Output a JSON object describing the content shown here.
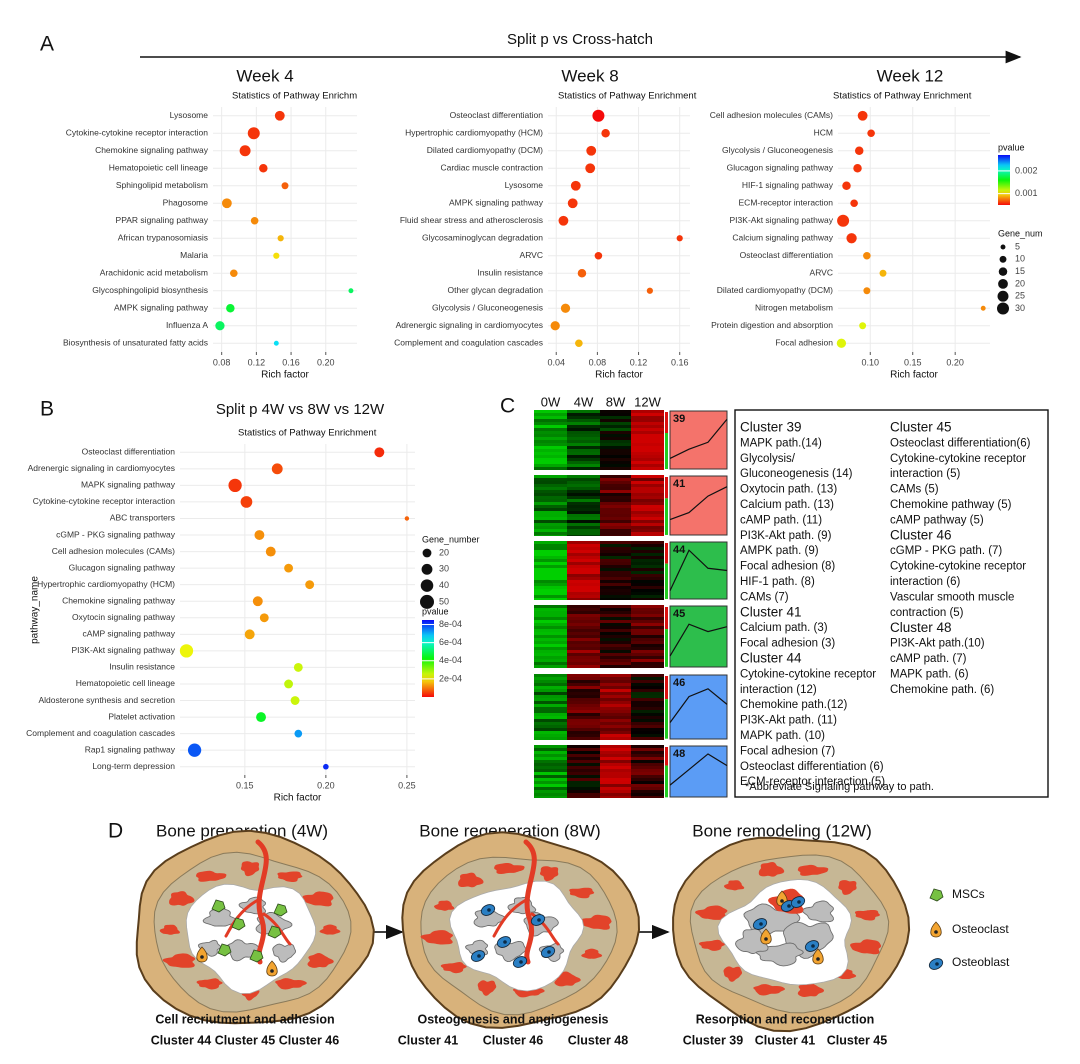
{
  "panel_labels": [
    "A",
    "B",
    "C",
    "D"
  ],
  "panel_a": {
    "title": "Split p vs Cross-hatch",
    "week_labels": [
      "Week 4",
      "Week 8",
      "Week 12"
    ]
  },
  "panel_b": {
    "title": "Split p 4W vs 8W vs 12W"
  },
  "chart_data": [
    {
      "type": "dot",
      "title": "Statistics of Pathway Enrichment",
      "xlabel": "Rich factor",
      "categories": [
        "Lysosome",
        "Cytokine-cytokine receptor interaction",
        "Chemokine signaling pathway",
        "Hematopoietic cell lineage",
        "Sphingolipid metabolism",
        "Phagosome",
        "PPAR signaling pathway",
        "African trypanosomiasis",
        "Malaria",
        "Arachidonic acid metabolism",
        "Glycosphingolipid biosynthesis",
        "AMPK signaling pathway",
        "Influenza A",
        "Biosynthesis of unsaturated fatty acids"
      ],
      "values": [
        0.147,
        0.117,
        0.107,
        0.128,
        0.153,
        0.086,
        0.118,
        0.148,
        0.143,
        0.094,
        0.229,
        0.09,
        0.078,
        0.143
      ],
      "sizes": [
        20,
        30,
        25,
        15,
        10,
        20,
        12,
        8,
        8,
        12,
        5,
        15,
        18,
        5
      ],
      "pvalues": [
        0.0006,
        0.0006,
        0.0006,
        0.0006,
        0.0007,
        0.0008,
        0.0008,
        0.0009,
        0.001,
        0.0008,
        0.0018,
        0.0017,
        0.0018,
        0.0022
      ],
      "xlim": [
        0.07,
        0.236
      ],
      "xticks": [
        0.08,
        0.12,
        0.16,
        {
          "value": 0.2,
          "label": "0.20"
        }
      ],
      "grid": true
    },
    {
      "type": "dot",
      "title": "Statistics of Pathway Enrichment",
      "xlabel": "Rich factor",
      "categories": [
        "Osteoclast differentiation",
        "Hypertrophic cardiomyopathy (HCM)",
        "Dilated cardiomyopathy (DCM)",
        "Cardiac muscle contraction",
        "Lysosome",
        "AMPK signaling pathway",
        "Fluid shear stress and atherosclerosis",
        "Glycosaminoglycan degradation",
        "ARVC",
        "Insulin resistance",
        "Other glycan degradation",
        "Glycolysis / Gluconeogenesis",
        "Adrenergic signaling in cardiomyocytes",
        "Complement and coagulation cascades"
      ],
      "values": [
        0.081,
        0.088,
        0.074,
        0.073,
        0.059,
        0.056,
        0.047,
        0.16,
        0.081,
        0.065,
        0.131,
        0.049,
        0.039,
        0.062
      ],
      "sizes": [
        30,
        15,
        20,
        20,
        20,
        20,
        20,
        8,
        12,
        15,
        8,
        18,
        18,
        12
      ],
      "pvalues": [
        0.0005,
        0.0006,
        0.0006,
        0.0006,
        0.0006,
        0.0006,
        0.0006,
        0.0006,
        0.0006,
        0.0007,
        0.0007,
        0.0008,
        0.0008,
        0.0009
      ],
      "xlim": [
        0.032,
        0.17
      ],
      "xticks": [
        0.04,
        0.08,
        0.12,
        0.16
      ],
      "grid": true
    },
    {
      "type": "dot",
      "title": "Statistics of Pathway Enrichment",
      "xlabel": "Rich factor",
      "categories": [
        "Cell adhesion molecules (CAMs)",
        "HCM",
        "Glycolysis / Gluconeogenesis",
        "Glucagon signaling pathway",
        "HIF-1 signaling pathway",
        "ECM-receptor interaction",
        "PI3K-Akt signaling pathway",
        "Calcium signaling pathway",
        "Osteoclast differentiation",
        "ARVC",
        "Dilated cardiomyopathy (DCM)",
        "Nitrogen metabolism",
        "Protein digestion and absorption",
        "Focal adhesion"
      ],
      "values": [
        0.091,
        0.101,
        0.087,
        0.085,
        0.072,
        0.081,
        0.068,
        0.078,
        0.096,
        0.115,
        0.096,
        0.233,
        0.091,
        0.066
      ],
      "sizes": [
        20,
        12,
        15,
        15,
        15,
        12,
        30,
        22,
        12,
        10,
        10,
        5,
        10,
        18
      ],
      "pvalues": [
        0.0006,
        0.0006,
        0.0006,
        0.0006,
        0.0006,
        0.0006,
        0.0006,
        0.0006,
        0.0008,
        0.0009,
        0.0008,
        0.0008,
        0.0011,
        0.0011
      ],
      "xlim": [
        0.062,
        0.241
      ],
      "xticks": [
        {
          "value": 0.1,
          "label": "0.10"
        },
        0.15,
        {
          "value": 0.2,
          "label": "0.20"
        }
      ],
      "grid": true,
      "color_legend": {
        "title": "pvalue",
        "lim": [
          0.0005,
          0.0027
        ],
        "ticks": [
          0.001,
          0.002
        ]
      },
      "size_legend": {
        "title": "Gene_num",
        "values": [
          5,
          10,
          15,
          20,
          25,
          30
        ]
      }
    },
    {
      "type": "dot",
      "title": "Statistics of Pathway Enrichment",
      "xlabel": "Rich factor",
      "ylabel": "pathway_name",
      "categories": [
        "Osteoclast differentiation",
        "Adrenergic signaling in cardiomyocytes",
        "MAPK signaling pathway",
        "Cytokine-cytokine receptor interaction",
        "ABC transporters",
        "cGMP - PKG signaling pathway",
        "Cell adhesion molecules (CAMs)",
        "Glucagon signaling pathway",
        "Hypertrophic cardiomyopathy (HCM)",
        "Chemokine signaling pathway",
        "Oxytocin signaling pathway",
        "cAMP signaling pathway",
        "PI3K-Akt signaling pathway",
        "Insulin resistance",
        "Hematopoietic cell lineage",
        "Aldosterone synthesis and secretion",
        "Platelet activation",
        "Complement and coagulation cascades",
        "Rap1 signaling pathway",
        "Long-term depression"
      ],
      "values": [
        0.233,
        0.17,
        0.144,
        0.151,
        0.25,
        0.159,
        0.166,
        0.177,
        0.19,
        0.158,
        0.162,
        0.153,
        0.114,
        0.183,
        0.177,
        0.181,
        0.16,
        0.183,
        0.119,
        0.2
      ],
      "sizes": [
        25,
        30,
        45,
        35,
        5,
        25,
        25,
        20,
        20,
        25,
        20,
        25,
        45,
        20,
        20,
        20,
        25,
        15,
        45,
        8
      ],
      "pvalues": [
        3e-05,
        6e-05,
        4e-05,
        5e-05,
        8e-05,
        0.00012,
        0.00012,
        0.00013,
        0.00013,
        0.00012,
        0.00013,
        0.00014,
        0.00022,
        0.00025,
        0.00026,
        0.00025,
        0.00045,
        0.00072,
        0.00078,
        0.00082
      ],
      "xlim": [
        0.11,
        0.255
      ],
      "xticks": [
        0.15,
        {
          "value": 0.2,
          "label": "0.20"
        },
        0.25
      ],
      "grid": true,
      "size_legend": {
        "title": "Gene_number",
        "values": [
          20,
          30,
          40,
          50
        ]
      },
      "color_legend": {
        "title": "pvalue",
        "lim": [
          0,
          0.00085
        ],
        "ticks": [
          {
            "value": 0.0008,
            "label": "8e-04"
          },
          {
            "value": 0.0006,
            "label": "6e-04"
          },
          {
            "value": 0.0004,
            "label": "4e-04"
          },
          {
            "value": 0.0002,
            "label": "2e-04"
          }
        ]
      }
    }
  ],
  "heatmap": {
    "columns": [
      "0W",
      "4W",
      "8W",
      "12W"
    ],
    "clusters": [
      {
        "id": "39",
        "levels": [
          -0.8,
          -0.4,
          -0.1,
          0.9
        ],
        "color": "#f4736b"
      },
      {
        "id": "41",
        "levels": [
          -0.6,
          -0.3,
          0.4,
          0.8
        ],
        "color": "#f4736b"
      },
      {
        "id": "44",
        "levels": [
          -0.9,
          0.9,
          0.1,
          0.0
        ],
        "color": "#2dbe4c"
      },
      {
        "id": "45",
        "levels": [
          -0.8,
          0.5,
          0.2,
          0.4
        ],
        "color": "#2dbe4c"
      },
      {
        "id": "46",
        "levels": [
          -0.6,
          0.4,
          0.7,
          0.1
        ],
        "color": "#5b9cf5"
      },
      {
        "id": "48",
        "levels": [
          -0.7,
          0.1,
          0.9,
          0.3
        ],
        "color": "#5b9cf5"
      }
    ]
  },
  "cluster_text": {
    "columns": [
      [
        {
          "title": "Cluster 39",
          "color": "#c0504d",
          "items": [
            "MAPK path.(14)",
            "Glycolysis/",
            "Gluconeogenesis (14)",
            "Oxytocin path. (13)",
            "Calcium path. (13)",
            "cAMP path. (11)",
            "PI3K-Akt path. (9)",
            "AMPK path. (9)",
            "Focal adhesion (8)",
            "HIF-1 path. (8)",
            "CAMs (7)"
          ]
        },
        {
          "title": "Cluster 41",
          "color": "#c0504d",
          "items": [
            "Calcium path. (3)",
            "Focal adhesion (3)"
          ]
        },
        {
          "title": "Cluster 44",
          "color": "#1e6b1e",
          "items": [
            "Cytokine-cytokine receptor",
            "interaction (12)",
            "Chemokine path.(12)",
            "PI3K-Akt path. (11)",
            "MAPK path. (10)",
            "Focal adhesion (7)",
            "Osteoclast differentiation (6)",
            "ECM-receptor interaction (5)"
          ]
        }
      ],
      [
        {
          "title": "Cluster 45",
          "color": "#1e6b1e",
          "items": [
            "Osteoclast differentiation(6)",
            "Cytokine-cytokine receptor",
            "interaction (5)",
            "CAMs (5)",
            "Chemokine pathway (5)",
            "cAMP pathway (5)"
          ]
        },
        {
          "title": "Cluster 46",
          "color": "#2020d0",
          "items": [
            "cGMP - PKG path. (7)",
            "Cytokine-cytokine receptor",
            "interaction (6)",
            "Vascular smooth muscle",
            "contraction (5)"
          ]
        },
        {
          "title": "Cluster 48",
          "color": "#2020d0",
          "items": [
            "PI3K-Akt path.(10)",
            "cAMP path. (7)",
            "MAPK path. (6)",
            "Chemokine path. (6)"
          ]
        }
      ]
    ],
    "footnote": "*Abbreviate Signaling pathway to path."
  },
  "diagram": {
    "stages": [
      {
        "title": "Bone preparation (4W)",
        "caption": "Cell recriutment and adhesion",
        "clusters": [
          {
            "text": "Cluster 44",
            "color": "#2db34a"
          },
          {
            "text": "Cluster 45",
            "color": "#2db34a"
          },
          {
            "text": "Cluster 46",
            "color": "#2a7fc4"
          }
        ]
      },
      {
        "title": "Bone regeneration (8W)",
        "caption": "Osteogenesis and angiogenesis",
        "clusters": [
          {
            "text": "Cluster 41",
            "color": "#e8178a"
          },
          {
            "text": "Cluster 46",
            "color": "#2a7fc4"
          },
          {
            "text": "Cluster 48",
            "color": "#2a7fc4"
          }
        ]
      },
      {
        "title": "Bone remodeling (12W)",
        "caption": "Resorption and reconsruction",
        "clusters": [
          {
            "text": "Cluster 39",
            "color": "#e8178a"
          },
          {
            "text": "Cluster 41",
            "color": "#e8178a"
          },
          {
            "text": "Cluster 45",
            "color": "#2db34a"
          }
        ]
      }
    ],
    "legend": [
      "MSCs",
      "Osteoclast",
      "Osteoblast"
    ]
  }
}
